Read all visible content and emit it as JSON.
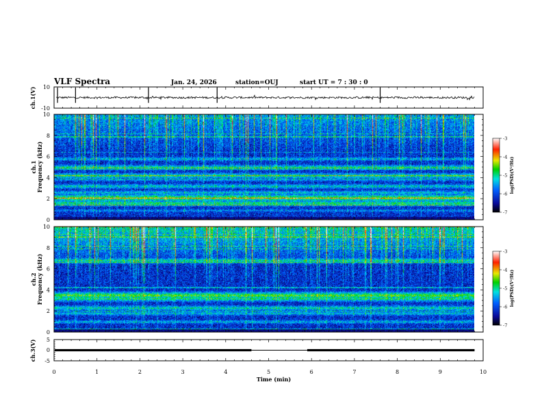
{
  "header": {
    "title": "VLF Spectra",
    "date": "Jan. 24, 2026",
    "station": "station=OUJ",
    "start": "start  UT =   7 : 30 : 0"
  },
  "chart_data": {
    "type": "heatmap",
    "title": "VLF Spectra",
    "xlabel": "Time  (min)",
    "xlim": [
      0,
      10
    ],
    "xticks": [
      "0",
      "1",
      "2",
      "3",
      "4",
      "5",
      "6",
      "7",
      "8",
      "9",
      "10"
    ],
    "data_extent_min": 9.8,
    "panels": {
      "ch1_waveform": {
        "ylabel": "ch.1(V)",
        "ylim": [
          -10,
          10
        ],
        "yticks": [
          "10",
          "-10"
        ],
        "baseline_v": 0,
        "spike_times_min": [
          0.08,
          0.5,
          2.2,
          3.8,
          7.6
        ]
      },
      "ch1_spectrogram": {
        "ylabel": "ch.1\nFrequency  (kHz)",
        "ylim": [
          0,
          10
        ],
        "yticks": [
          "0",
          "2",
          "4",
          "6",
          "8",
          "10"
        ],
        "bands_khz": [
          {
            "f": 0.9,
            "level": -5.6
          },
          {
            "f": 1.6,
            "level": -4.9
          },
          {
            "f": 2.1,
            "level": -4.6
          },
          {
            "f": 2.6,
            "level": -5.3
          },
          {
            "f": 3.2,
            "level": -5.2
          },
          {
            "f": 3.8,
            "level": -5.6
          },
          {
            "f": 4.2,
            "level": -5.0
          },
          {
            "f": 5.0,
            "level": -5.1
          },
          {
            "f": 5.8,
            "level": -5.4
          }
        ],
        "colorbar": {
          "label": "log(PSD)(V²/Hz)",
          "range": [
            -7,
            -3
          ],
          "ticks": [
            "-3",
            "-4",
            "-5",
            "-6",
            "-7"
          ]
        }
      },
      "ch2_spectrogram": {
        "ylabel": "ch.2\nFrequency  (kHz)",
        "ylim": [
          0,
          10
        ],
        "yticks": [
          "0",
          "2",
          "4",
          "6",
          "8",
          "10"
        ],
        "bands_khz": [
          {
            "f": 1.0,
            "level": -5.4
          },
          {
            "f": 1.8,
            "level": -5.3
          },
          {
            "f": 2.3,
            "level": -5.1
          },
          {
            "f": 3.2,
            "level": -4.9
          },
          {
            "f": 3.5,
            "level": -4.6
          },
          {
            "f": 6.8,
            "level": -5.0
          }
        ],
        "colorbar": {
          "label": "log(PSD)(V²/Hz)",
          "range": [
            -7,
            -3
          ],
          "ticks": [
            "-3",
            "-4",
            "-5",
            "-6",
            "-7"
          ]
        }
      },
      "ch3_level": {
        "ylabel": "ch.3(V)",
        "ylim": [
          -5,
          5
        ],
        "yticks": [
          "5",
          "0",
          "-5"
        ],
        "level_v": 0,
        "thin_segment_min": [
          4.6,
          5.9
        ]
      }
    }
  }
}
